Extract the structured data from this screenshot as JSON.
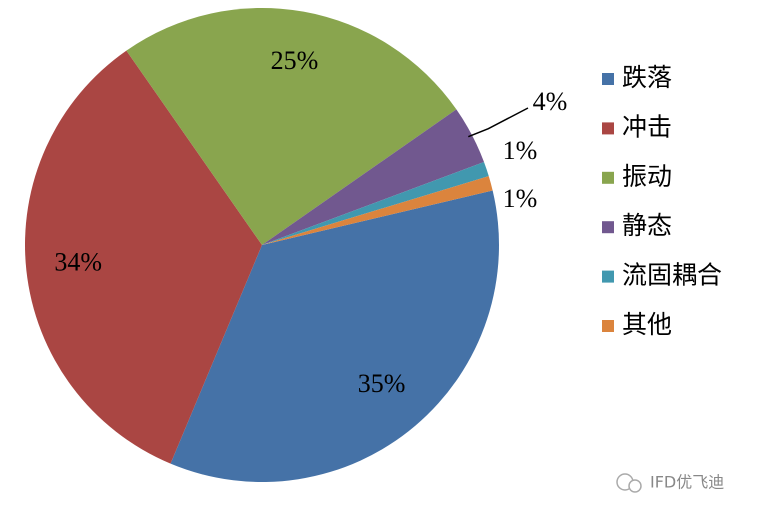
{
  "chart_data": {
    "type": "pie",
    "categories": [
      "跌落",
      "冲击",
      "振动",
      "静态",
      "流固耦合",
      "其他"
    ],
    "values": [
      35,
      34,
      25,
      4,
      1,
      1
    ],
    "value_labels": [
      "35%",
      "34%",
      "25%",
      "4%",
      "1%",
      "1%"
    ],
    "colors": [
      "#4572a7",
      "#aa4643",
      "#89a54e",
      "#71588f",
      "#4198af",
      "#db843d"
    ],
    "legend": "right",
    "watermark": "IFD优飞迪"
  }
}
